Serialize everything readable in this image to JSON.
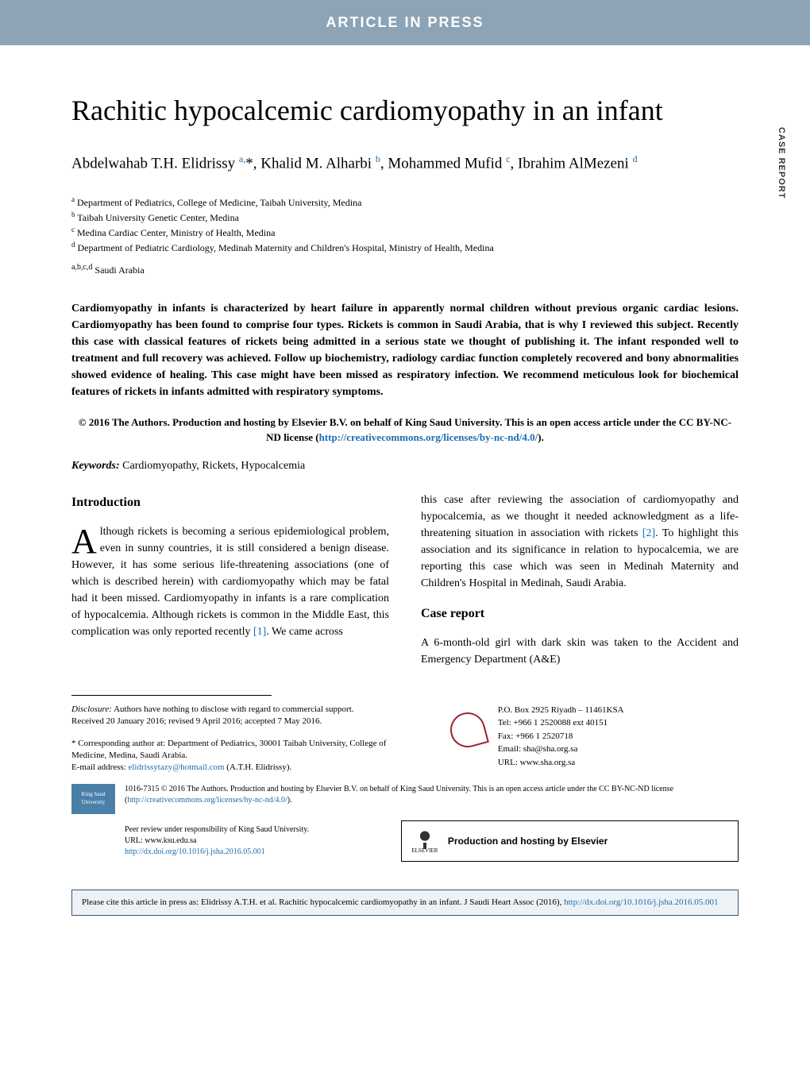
{
  "banner": {
    "text": "ARTICLE IN PRESS"
  },
  "side_label": "CASE REPORT",
  "title": "Rachitic hypocalcemic cardiomyopathy in an infant",
  "authors_html": "Abdelwahab T.H. Elidrissy <sup>a,</sup>*, Khalid M. Alharbi <sup>b</sup>, Mohammed Mufid <sup>c</sup>, Ibrahim AlMezeni <sup>d</sup>",
  "affiliations": [
    {
      "sup": "a",
      "text": "Department of Pediatrics, College of Medicine, Taibah University, Medina"
    },
    {
      "sup": "b",
      "text": "Taibah University Genetic Center, Medina"
    },
    {
      "sup": "c",
      "text": "Medina Cardiac Center, Ministry of Health, Medina"
    },
    {
      "sup": "d",
      "text": "Department of Pediatric Cardiology, Medinah Maternity and Children's Hospital, Ministry of Health, Medina"
    }
  ],
  "country": {
    "sup": "a,b,c,d",
    "text": "Saudi Arabia"
  },
  "abstract": "Cardiomyopathy in infants is characterized by heart failure in apparently normal children without previous organic cardiac lesions. Cardiomyopathy has been found to comprise four types. Rickets is common in Saudi Arabia, that is why I reviewed this subject. Recently this case with classical features of rickets being admitted in a serious state we thought of publishing it. The infant responded well to treatment and full recovery was achieved. Follow up biochemistry, radiology cardiac function completely recovered and bony abnormalities showed evidence of healing. This case might have been missed as respiratory infection. We recommend meticulous look for biochemical features of rickets in infants admitted with respiratory symptoms.",
  "copyright": {
    "text_before": "© 2016 The Authors. Production and hosting by Elsevier B.V. on behalf of King Saud University. This is an open access article under the CC BY-NC-ND license (",
    "link": "http://creativecommons.org/licenses/by-nc-nd/4.0/",
    "text_after": ")."
  },
  "keywords": {
    "label": "Keywords:",
    "text": " Cardiomyopathy, Rickets, Hypocalcemia"
  },
  "sections": {
    "introduction": {
      "heading": "Introduction",
      "dropcap": "A",
      "col1_part1": "lthough rickets is becoming a serious epidemiological problem, even in sunny countries, it is still considered a benign disease. However, it has some serious life-threatening associations (one of which is described herein) with cardiomyopathy which may be fatal had it been missed. Cardiomyopathy in infants is a rare complication of hypocalcemia. Although rickets is common in the Middle East, this complication was only reported recently ",
      "ref1": "[1]",
      "col1_part2": ". We came across",
      "col2_part1": "this case after reviewing the association of cardiomyopathy and hypocalcemia, as we thought it needed acknowledgment as a life-threatening situation in association with rickets ",
      "ref2": "[2]",
      "col2_part2": ". To highlight this association and its significance in relation to hypocalcemia, we are reporting this case which was seen in Medinah Maternity and Children's Hospital in Medinah, Saudi Arabia."
    },
    "case_report": {
      "heading": "Case report",
      "text": "A 6-month-old girl with dark skin was taken to the Accident and Emergency Department (A&E)"
    }
  },
  "footer": {
    "disclosure_label": "Disclosure:",
    "disclosure_text": " Authors have nothing to disclose with regard to commercial support.",
    "received": "Received 20 January 2016; revised 9 April 2016; accepted 7 May 2016.",
    "corresponding": "* Corresponding author at: Department of Pediatrics, 30001 Taibah University, College of Medicine, Medina, Saudi Arabia.",
    "email_label": "E-mail address: ",
    "email": "elidrissytazy@hotmail.com",
    "email_suffix": " (A.T.H. Elidrissy).",
    "contact": {
      "po": "P.O. Box 2925 Riyadh – 11461KSA",
      "tel": "Tel: +966 1 2520088 ext 40151",
      "fax": "Fax: +966 1 2520718",
      "email": "Email: sha@sha.org.sa",
      "url": "URL: www.sha.org.sa"
    },
    "license_text_before": "1016-7315 © 2016 The Authors. Production and hosting by Elsevier B.V. on behalf of King Saud University. This is an open access article under the CC BY-NC-ND license (",
    "license_link": "http://creativecommons.org/licenses/by-nc-nd/4.0/",
    "license_text_after": ").",
    "peer_review": "Peer review under responsibility of King Saud University.",
    "ksu_url": "URL: www.ksu.edu.sa",
    "doi_link": "http://dx.doi.org/10.1016/j.jsha.2016.05.001",
    "elsevier_label": "ELSEVIER",
    "hosting": "Production and hosting by Elsevier"
  },
  "cite": {
    "text_before": "Please cite this article in press as: Elidrissy A.T.H. et al. Rachitic hypocalcemic cardiomyopathy in an infant. J Saudi Heart Assoc (2016), ",
    "link": "http://dx.doi.org/10.1016/j.jsha.2016.05.001"
  },
  "colors": {
    "banner_bg": "#8ca4b5",
    "link": "#1a6db3",
    "cite_bg": "#eef2f6",
    "cite_border": "#3b5570",
    "heart_logo": "#a02030",
    "univ_logo": "#4a7fa8"
  }
}
